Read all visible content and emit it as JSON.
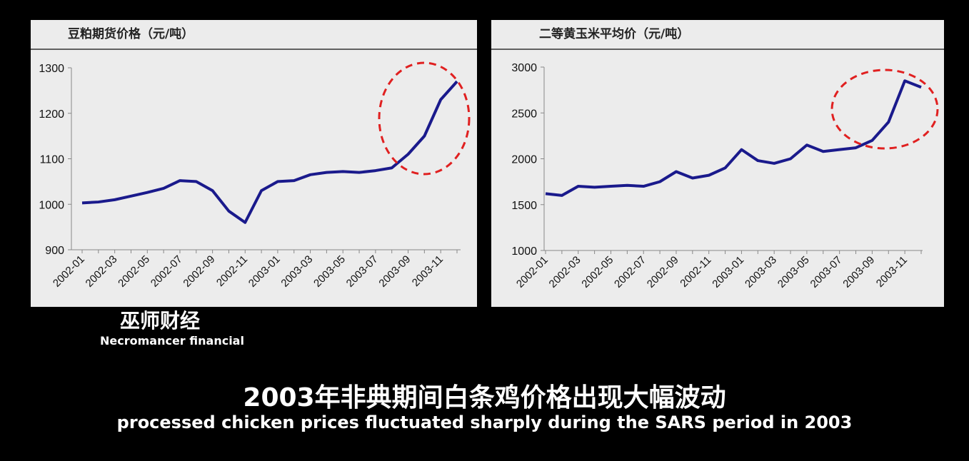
{
  "chart_data": [
    {
      "type": "line",
      "title": "豆粕期货价格（元/吨）",
      "categories": [
        "2002-01",
        null,
        "2002-03",
        null,
        "2002-05",
        null,
        "2002-07",
        null,
        "2002-09",
        null,
        "2002-11",
        null,
        "2003-01",
        null,
        "2003-03",
        null,
        "2003-05",
        null,
        "2003-07",
        null,
        "2003-09",
        null,
        "2003-11",
        null
      ],
      "values": [
        1003,
        1005,
        1010,
        1018,
        1026,
        1035,
        1052,
        1050,
        1030,
        985,
        960,
        1030,
        1050,
        1052,
        1065,
        1070,
        1072,
        1070,
        1074,
        1080,
        1110,
        1150,
        1230,
        1270
      ],
      "color": "#1a1a8c",
      "ylim": [
        900,
        1300
      ],
      "yticks": [
        900,
        1000,
        1100,
        1200,
        1300
      ]
    },
    {
      "type": "line",
      "title": "二等黄玉米平均价（元/吨）",
      "categories": [
        "2002-01",
        null,
        "2002-03",
        null,
        "2002-05",
        null,
        "2002-07",
        null,
        "2002-09",
        null,
        "2002-11",
        null,
        "2003-01",
        null,
        "2003-03",
        null,
        "2003-05",
        null,
        "2003-07",
        null,
        "2003-09",
        null,
        "2003-11",
        null
      ],
      "values": [
        1620,
        1600,
        1700,
        1690,
        1700,
        1710,
        1700,
        1750,
        1860,
        1790,
        1820,
        1900,
        2100,
        1980,
        1950,
        2000,
        2150,
        2080,
        2100,
        2120,
        2200,
        2400,
        2850,
        2780
      ],
      "color": "#1a1a8c",
      "ylim": [
        1000,
        3000
      ],
      "yticks": [
        1000,
        1500,
        2000,
        2500,
        3000
      ]
    }
  ],
  "caption": {
    "chinese": "2003年非典期间白条鸡价格出现大幅波动",
    "english": "processed chicken prices fluctuated sharply during the SARS period in 2003"
  },
  "watermark": {
    "chinese": "巫师财经",
    "english": "Necromancer financial"
  }
}
